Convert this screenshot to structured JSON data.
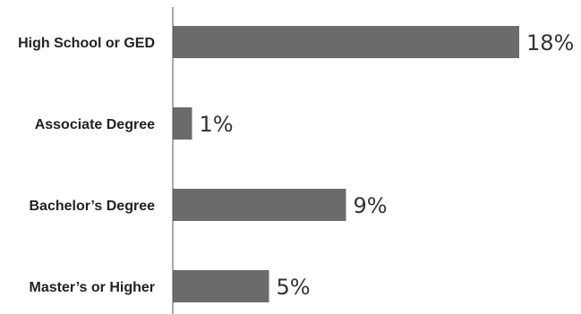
{
  "chart_data": {
    "type": "bar",
    "orientation": "horizontal",
    "categories": [
      "High School or GED",
      "Associate Degree",
      "Bachelor’s Degree",
      "Master’s or Higher"
    ],
    "values": [
      18,
      1,
      9,
      5
    ],
    "value_labels": [
      "18%",
      "1%",
      "9%",
      "5%"
    ],
    "unit": "%",
    "xlim": [
      0,
      18
    ],
    "grid": false,
    "legend": "none",
    "bar_color": "#6b6b6b",
    "axis_color": "#555555"
  }
}
